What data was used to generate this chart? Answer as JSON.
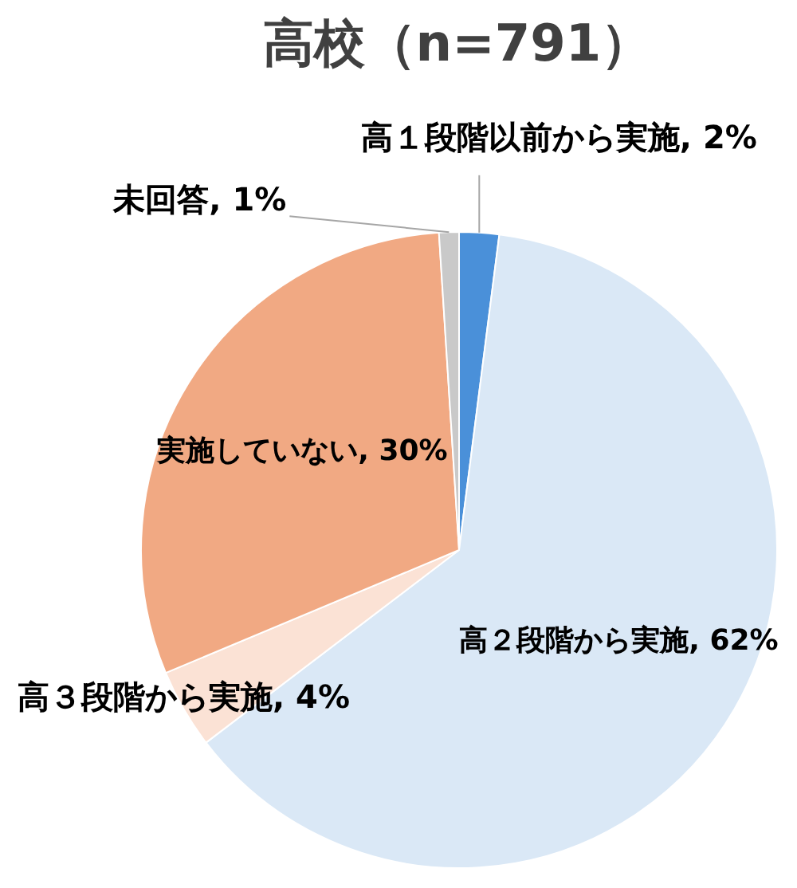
{
  "chart_data": {
    "type": "pie",
    "title": "高校（n=791）",
    "categories": [
      "高１段階以前から実施",
      "高２段階から実施",
      "高３段階から実施",
      "実施していない",
      "未回答"
    ],
    "values": [
      2,
      62,
      4,
      30,
      1
    ],
    "colors": [
      "#4a90d9",
      "#dae8f6",
      "#fbe2d5",
      "#f1a983",
      "#c9c9c9"
    ],
    "value_labels": [
      "2%",
      "62%",
      "4%",
      "30%",
      "1%"
    ]
  }
}
